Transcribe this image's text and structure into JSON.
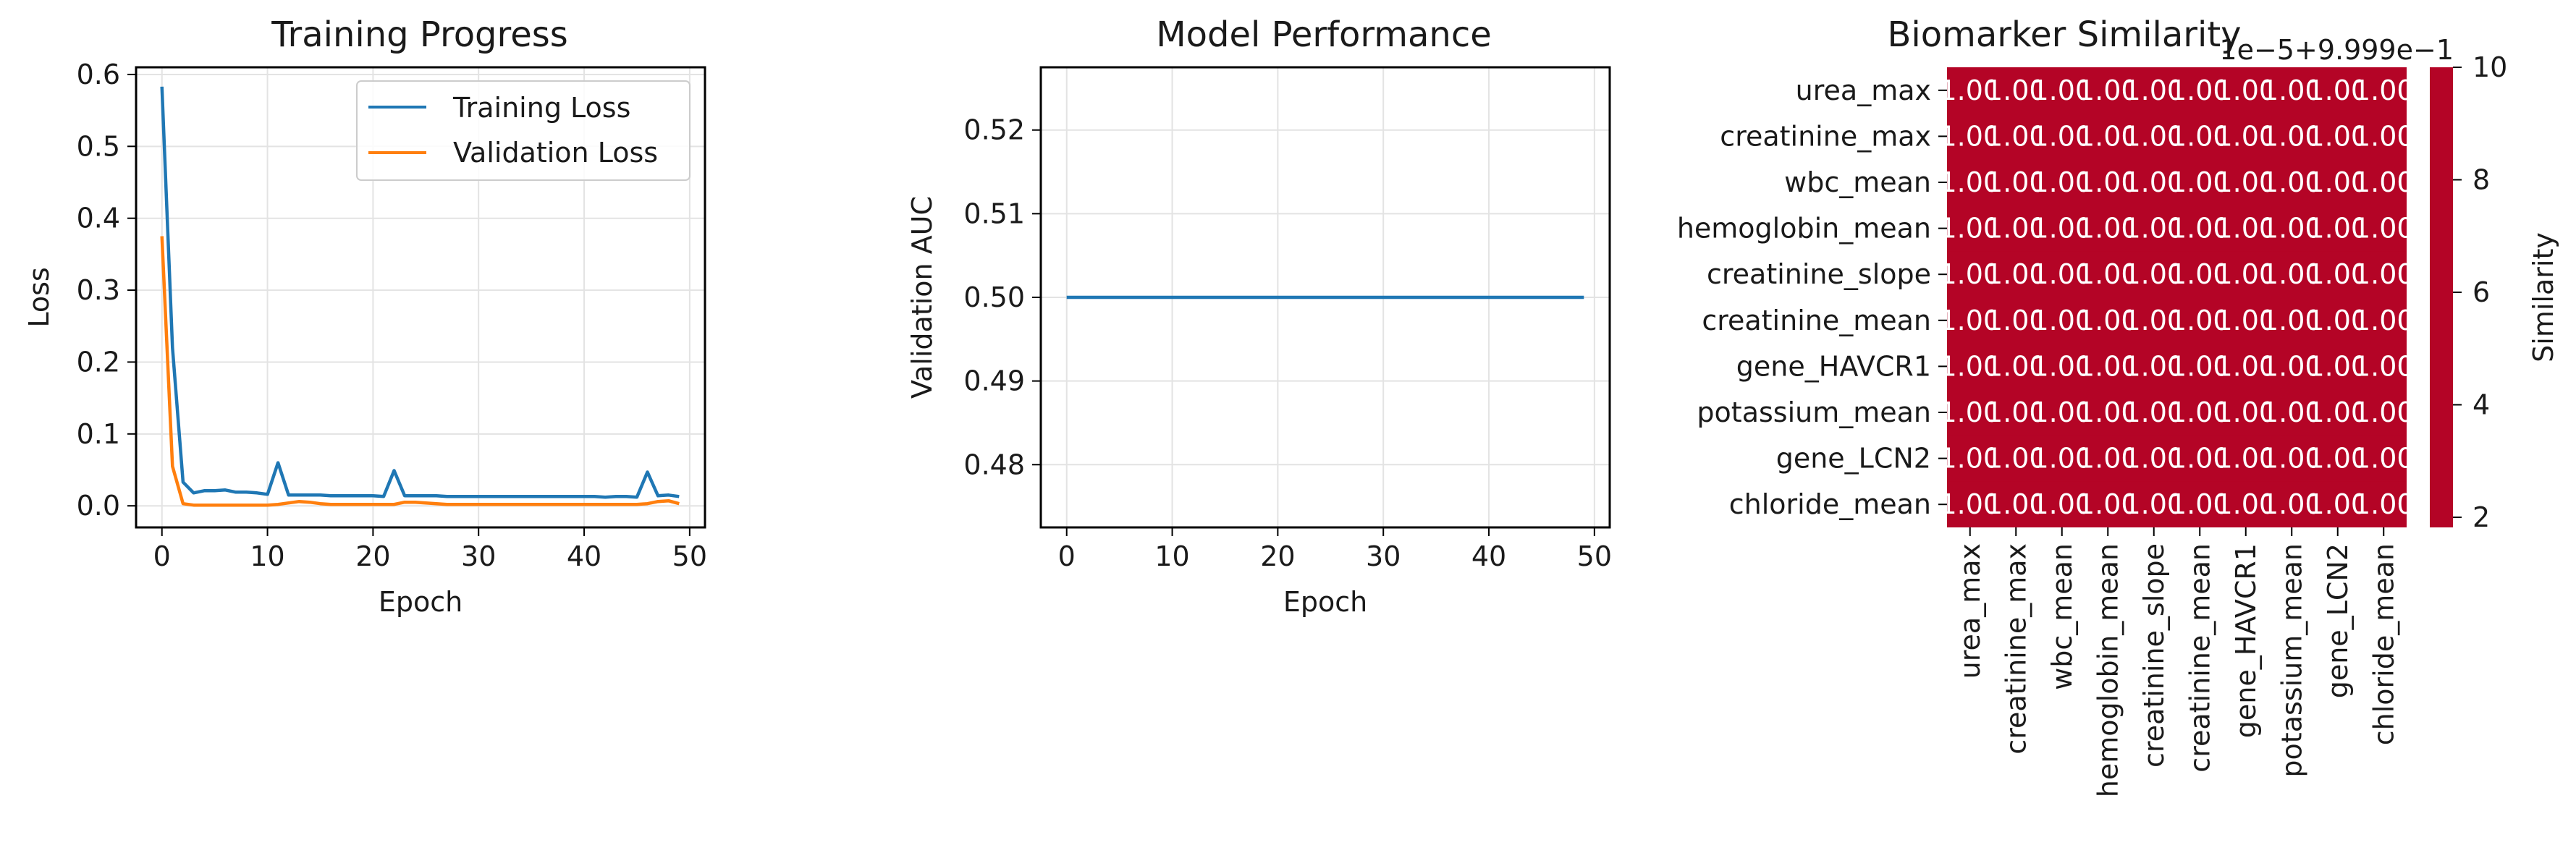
{
  "chart_data": [
    {
      "type": "line",
      "title": "Training Progress",
      "xlabel": "Epoch",
      "ylabel": "Loss",
      "xlim": [
        -2.45,
        51.45
      ],
      "ylim": [
        -0.03,
        0.61
      ],
      "xticks": [
        0,
        10,
        20,
        30,
        40,
        50
      ],
      "xtick_labels": [
        "0",
        "10",
        "20",
        "30",
        "40",
        "50"
      ],
      "yticks": [
        0.0,
        0.1,
        0.2,
        0.3,
        0.4,
        0.5,
        0.6
      ],
      "ytick_labels": [
        "0.0",
        "0.1",
        "0.2",
        "0.3",
        "0.4",
        "0.5",
        "0.6"
      ],
      "grid": true,
      "legend": "upper right",
      "x": [
        0,
        1,
        2,
        3,
        4,
        5,
        6,
        7,
        8,
        9,
        10,
        11,
        12,
        13,
        14,
        15,
        16,
        17,
        18,
        19,
        20,
        21,
        22,
        23,
        24,
        25,
        26,
        27,
        28,
        29,
        30,
        31,
        32,
        33,
        34,
        35,
        36,
        37,
        38,
        39,
        40,
        41,
        42,
        43,
        44,
        45,
        46,
        47,
        48,
        49
      ],
      "series": [
        {
          "name": "Training Loss",
          "color": "#1f77b4",
          "values": [
            0.583,
            0.22,
            0.033,
            0.018,
            0.021,
            0.021,
            0.022,
            0.019,
            0.019,
            0.018,
            0.016,
            0.06,
            0.015,
            0.015,
            0.015,
            0.015,
            0.014,
            0.014,
            0.014,
            0.014,
            0.014,
            0.013,
            0.049,
            0.014,
            0.014,
            0.014,
            0.014,
            0.013,
            0.013,
            0.013,
            0.013,
            0.013,
            0.013,
            0.013,
            0.013,
            0.013,
            0.013,
            0.013,
            0.013,
            0.013,
            0.013,
            0.013,
            0.012,
            0.013,
            0.013,
            0.012,
            0.047,
            0.014,
            0.015,
            0.013
          ]
        },
        {
          "name": "Validation Loss",
          "color": "#ff7f0e",
          "values": [
            0.375,
            0.055,
            0.003,
            0.001,
            0.001,
            0.001,
            0.001,
            0.001,
            0.001,
            0.001,
            0.001,
            0.002,
            0.004,
            0.006,
            0.005,
            0.003,
            0.002,
            0.002,
            0.002,
            0.002,
            0.002,
            0.002,
            0.002,
            0.005,
            0.005,
            0.004,
            0.003,
            0.002,
            0.002,
            0.002,
            0.002,
            0.002,
            0.002,
            0.002,
            0.002,
            0.002,
            0.002,
            0.002,
            0.002,
            0.002,
            0.002,
            0.002,
            0.002,
            0.002,
            0.002,
            0.002,
            0.003,
            0.006,
            0.007,
            0.003
          ]
        }
      ]
    },
    {
      "type": "line",
      "title": "Model Performance",
      "xlabel": "Epoch",
      "ylabel": "Validation AUC",
      "xlim": [
        -2.45,
        51.45
      ],
      "ylim": [
        0.4725,
        0.5275
      ],
      "xticks": [
        0,
        10,
        20,
        30,
        40,
        50
      ],
      "xtick_labels": [
        "0",
        "10",
        "20",
        "30",
        "40",
        "50"
      ],
      "yticks": [
        0.48,
        0.49,
        0.5,
        0.51,
        0.52
      ],
      "ytick_labels": [
        "0.48",
        "0.49",
        "0.50",
        "0.51",
        "0.52"
      ],
      "grid": true,
      "x": [
        0,
        49
      ],
      "series": [
        {
          "color": "#1f77b4",
          "values": [
            0.5,
            0.5
          ]
        }
      ]
    },
    {
      "type": "heatmap",
      "title": "Biomarker Similarity",
      "labels": [
        "urea_max",
        "creatinine_max",
        "wbc_mean",
        "hemoglobin_mean",
        "creatinine_slope",
        "creatinine_mean",
        "gene_HAVCR1",
        "potassium_mean",
        "gene_LCN2",
        "chloride_mean"
      ],
      "values": [
        [
          1,
          1,
          1,
          1,
          1,
          1,
          1,
          1,
          1,
          1
        ],
        [
          1,
          1,
          1,
          1,
          1,
          1,
          1,
          1,
          1,
          1
        ],
        [
          1,
          1,
          1,
          1,
          1,
          1,
          1,
          1,
          1,
          1
        ],
        [
          1,
          1,
          1,
          1,
          1,
          1,
          1,
          1,
          1,
          1
        ],
        [
          1,
          1,
          1,
          1,
          1,
          1,
          1,
          1,
          1,
          1
        ],
        [
          1,
          1,
          1,
          1,
          1,
          1,
          1,
          1,
          1,
          1
        ],
        [
          1,
          1,
          1,
          1,
          1,
          1,
          1,
          1,
          1,
          1
        ],
        [
          1,
          1,
          1,
          1,
          1,
          1,
          1,
          1,
          1,
          1
        ],
        [
          1,
          1,
          1,
          1,
          1,
          1,
          1,
          1,
          1,
          1
        ],
        [
          1,
          1,
          1,
          1,
          1,
          1,
          1,
          1,
          1,
          1
        ]
      ],
      "cell_text": "1.00",
      "cell_color": "#b40426",
      "colorbar": {
        "label": "Similarity",
        "ticks": [
          "2",
          "4",
          "6",
          "8",
          "10"
        ],
        "offset_text": "1e−5+9.999e−1",
        "color": "#b40426"
      }
    }
  ]
}
